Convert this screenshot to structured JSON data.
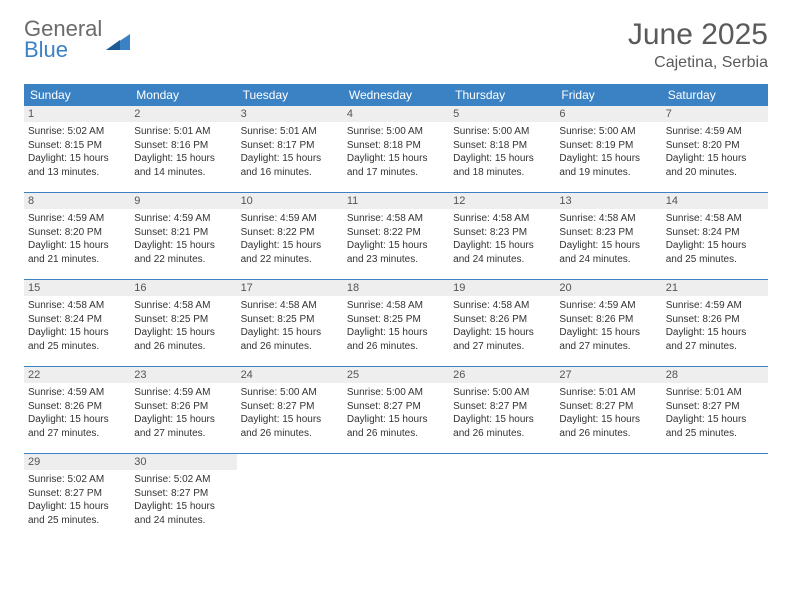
{
  "logo": {
    "word1": "General",
    "word2": "Blue"
  },
  "header": {
    "title": "June 2025",
    "location": "Cajetina, Serbia"
  },
  "colors": {
    "header_bg": "#3b82c4",
    "daynum_bg": "#eeeeee",
    "text_gray": "#5a5a5a",
    "row_border": "#3b82c4"
  },
  "weekdays": [
    "Sunday",
    "Monday",
    "Tuesday",
    "Wednesday",
    "Thursday",
    "Friday",
    "Saturday"
  ],
  "weeks": [
    [
      {
        "n": "1",
        "sr": "5:02 AM",
        "ss": "8:15 PM",
        "dl": "15 hours and 13 minutes."
      },
      {
        "n": "2",
        "sr": "5:01 AM",
        "ss": "8:16 PM",
        "dl": "15 hours and 14 minutes."
      },
      {
        "n": "3",
        "sr": "5:01 AM",
        "ss": "8:17 PM",
        "dl": "15 hours and 16 minutes."
      },
      {
        "n": "4",
        "sr": "5:00 AM",
        "ss": "8:18 PM",
        "dl": "15 hours and 17 minutes."
      },
      {
        "n": "5",
        "sr": "5:00 AM",
        "ss": "8:18 PM",
        "dl": "15 hours and 18 minutes."
      },
      {
        "n": "6",
        "sr": "5:00 AM",
        "ss": "8:19 PM",
        "dl": "15 hours and 19 minutes."
      },
      {
        "n": "7",
        "sr": "4:59 AM",
        "ss": "8:20 PM",
        "dl": "15 hours and 20 minutes."
      }
    ],
    [
      {
        "n": "8",
        "sr": "4:59 AM",
        "ss": "8:20 PM",
        "dl": "15 hours and 21 minutes."
      },
      {
        "n": "9",
        "sr": "4:59 AM",
        "ss": "8:21 PM",
        "dl": "15 hours and 22 minutes."
      },
      {
        "n": "10",
        "sr": "4:59 AM",
        "ss": "8:22 PM",
        "dl": "15 hours and 22 minutes."
      },
      {
        "n": "11",
        "sr": "4:58 AM",
        "ss": "8:22 PM",
        "dl": "15 hours and 23 minutes."
      },
      {
        "n": "12",
        "sr": "4:58 AM",
        "ss": "8:23 PM",
        "dl": "15 hours and 24 minutes."
      },
      {
        "n": "13",
        "sr": "4:58 AM",
        "ss": "8:23 PM",
        "dl": "15 hours and 24 minutes."
      },
      {
        "n": "14",
        "sr": "4:58 AM",
        "ss": "8:24 PM",
        "dl": "15 hours and 25 minutes."
      }
    ],
    [
      {
        "n": "15",
        "sr": "4:58 AM",
        "ss": "8:24 PM",
        "dl": "15 hours and 25 minutes."
      },
      {
        "n": "16",
        "sr": "4:58 AM",
        "ss": "8:25 PM",
        "dl": "15 hours and 26 minutes."
      },
      {
        "n": "17",
        "sr": "4:58 AM",
        "ss": "8:25 PM",
        "dl": "15 hours and 26 minutes."
      },
      {
        "n": "18",
        "sr": "4:58 AM",
        "ss": "8:25 PM",
        "dl": "15 hours and 26 minutes."
      },
      {
        "n": "19",
        "sr": "4:58 AM",
        "ss": "8:26 PM",
        "dl": "15 hours and 27 minutes."
      },
      {
        "n": "20",
        "sr": "4:59 AM",
        "ss": "8:26 PM",
        "dl": "15 hours and 27 minutes."
      },
      {
        "n": "21",
        "sr": "4:59 AM",
        "ss": "8:26 PM",
        "dl": "15 hours and 27 minutes."
      }
    ],
    [
      {
        "n": "22",
        "sr": "4:59 AM",
        "ss": "8:26 PM",
        "dl": "15 hours and 27 minutes."
      },
      {
        "n": "23",
        "sr": "4:59 AM",
        "ss": "8:26 PM",
        "dl": "15 hours and 27 minutes."
      },
      {
        "n": "24",
        "sr": "5:00 AM",
        "ss": "8:27 PM",
        "dl": "15 hours and 26 minutes."
      },
      {
        "n": "25",
        "sr": "5:00 AM",
        "ss": "8:27 PM",
        "dl": "15 hours and 26 minutes."
      },
      {
        "n": "26",
        "sr": "5:00 AM",
        "ss": "8:27 PM",
        "dl": "15 hours and 26 minutes."
      },
      {
        "n": "27",
        "sr": "5:01 AM",
        "ss": "8:27 PM",
        "dl": "15 hours and 26 minutes."
      },
      {
        "n": "28",
        "sr": "5:01 AM",
        "ss": "8:27 PM",
        "dl": "15 hours and 25 minutes."
      }
    ],
    [
      {
        "n": "29",
        "sr": "5:02 AM",
        "ss": "8:27 PM",
        "dl": "15 hours and 25 minutes."
      },
      {
        "n": "30",
        "sr": "5:02 AM",
        "ss": "8:27 PM",
        "dl": "15 hours and 24 minutes."
      },
      null,
      null,
      null,
      null,
      null
    ]
  ],
  "labels": {
    "sunrise": "Sunrise:",
    "sunset": "Sunset:",
    "daylight": "Daylight:"
  }
}
